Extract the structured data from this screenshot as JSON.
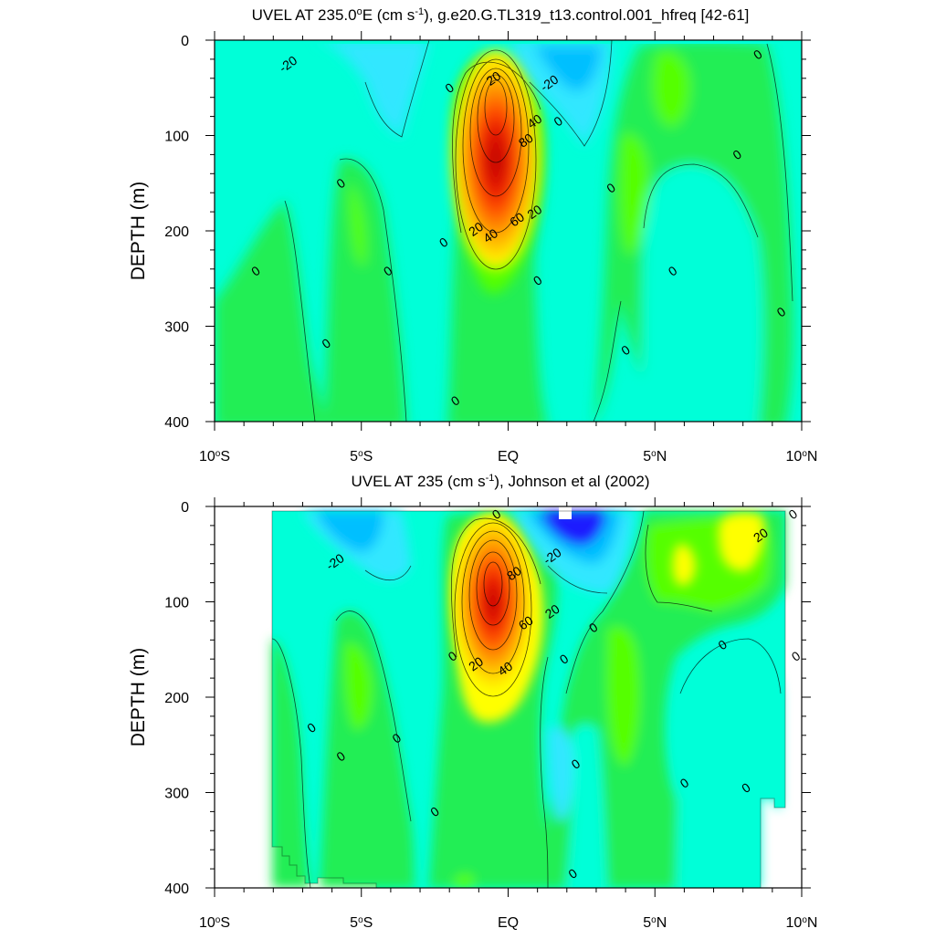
{
  "chart_data": [
    {
      "type": "heatmap",
      "title_main": "UVEL AT 235.0",
      "title_sup1": "o",
      "title_mid": "E (cm s",
      "title_sup2": "-1",
      "title_end": "), g.e20.G.TL319_t13.control.001_hfreq [42-61]",
      "ylabel": "DEPTH (m)",
      "xlim": [
        -10,
        10
      ],
      "ylim": [
        0,
        400
      ],
      "y_reversed": true,
      "x_ticks": [
        {
          "value": -10,
          "num": "10",
          "deg": "o",
          "hemi": "S"
        },
        {
          "value": -5,
          "num": "5",
          "deg": "o",
          "hemi": "S"
        },
        {
          "value": 0,
          "num": "EQ",
          "deg": "",
          "hemi": ""
        },
        {
          "value": 5,
          "num": "5",
          "deg": "o",
          "hemi": "N"
        },
        {
          "value": 10,
          "num": "10",
          "deg": "o",
          "hemi": "N"
        }
      ],
      "y_ticks": [
        0,
        100,
        200,
        300,
        400
      ],
      "colors": {
        "c_neg30": "#00bfff",
        "c_neg20": "#33e7ff",
        "c_neg10": "#00ffd8",
        "c_0": "#22ee55",
        "c_10": "#55ff00",
        "c_20": "#ffff00",
        "c_30": "#ffd700",
        "c_40": "#ffb000",
        "c_60": "#ff7000",
        "c_80": "#ff2a00",
        "c_max": "#cc0000"
      },
      "core": {
        "lat": -0.1,
        "depth": 110,
        "max": 85
      },
      "contour_labels": [
        {
          "text": "-20",
          "lat": -7.5,
          "depth": 25
        },
        {
          "text": "0",
          "lat": -2.0,
          "depth": 50
        },
        {
          "text": "20",
          "lat": -0.5,
          "depth": 40
        },
        {
          "text": "-20",
          "lat": 1.4,
          "depth": 45
        },
        {
          "text": "40",
          "lat": 0.9,
          "depth": 85
        },
        {
          "text": "80",
          "lat": 0.6,
          "depth": 105
        },
        {
          "text": "0",
          "lat": 1.7,
          "depth": 85
        },
        {
          "text": "0",
          "lat": 8.5,
          "depth": 15
        },
        {
          "text": "0",
          "lat": 7.8,
          "depth": 120
        },
        {
          "text": "0",
          "lat": -5.7,
          "depth": 150
        },
        {
          "text": "0",
          "lat": 3.5,
          "depth": 155
        },
        {
          "text": "20",
          "lat": 0.9,
          "depth": 180
        },
        {
          "text": "60",
          "lat": 0.3,
          "depth": 188
        },
        {
          "text": "20",
          "lat": -1.1,
          "depth": 198
        },
        {
          "text": "40",
          "lat": -0.6,
          "depth": 205
        },
        {
          "text": "0",
          "lat": -2.2,
          "depth": 212
        },
        {
          "text": "0",
          "lat": -8.6,
          "depth": 242
        },
        {
          "text": "0",
          "lat": -4.1,
          "depth": 242
        },
        {
          "text": "0",
          "lat": 5.6,
          "depth": 242
        },
        {
          "text": "0",
          "lat": 1.0,
          "depth": 252
        },
        {
          "text": "0",
          "lat": 9.3,
          "depth": 285
        },
        {
          "text": "0",
          "lat": -6.2,
          "depth": 318
        },
        {
          "text": "0",
          "lat": 4.0,
          "depth": 325
        },
        {
          "text": "0",
          "lat": -1.8,
          "depth": 378
        }
      ]
    },
    {
      "type": "heatmap",
      "title_main": "UVEL AT 235 (cm s",
      "title_sup1": "-1",
      "title_mid": "), Johnson et al (2002)",
      "title_sup2": "",
      "title_end": "",
      "ylabel": "DEPTH (m)",
      "xlim": [
        -10,
        10
      ],
      "ylim": [
        0,
        400
      ],
      "y_reversed": true,
      "x_ticks": [
        {
          "value": -10,
          "num": "10",
          "deg": "o",
          "hemi": "S"
        },
        {
          "value": -5,
          "num": "5",
          "deg": "o",
          "hemi": "S"
        },
        {
          "value": 0,
          "num": "EQ",
          "deg": "",
          "hemi": ""
        },
        {
          "value": 5,
          "num": "5",
          "deg": "o",
          "hemi": "N"
        },
        {
          "value": 10,
          "num": "10",
          "deg": "o",
          "hemi": "N"
        }
      ],
      "y_ticks": [
        0,
        100,
        200,
        300,
        400
      ],
      "colors": {
        "c_neg40": "#1a1aff",
        "c_neg30": "#00bfff",
        "c_neg20": "#33e7ff",
        "c_neg10": "#00ffd8",
        "c_0": "#22ee55",
        "c_10": "#55ff00",
        "c_20": "#ffff00",
        "c_40": "#ffb000",
        "c_80": "#ff2a00",
        "c_max": "#cc0000"
      },
      "core": {
        "lat": -0.2,
        "depth": 85,
        "max": 88
      },
      "data_extent_lat": [
        -8.0,
        9.8
      ],
      "contour_labels": [
        {
          "text": "0",
          "lat": -0.4,
          "depth": 8
        },
        {
          "text": "0",
          "lat": 9.7,
          "depth": 8
        },
        {
          "text": "20",
          "lat": 8.6,
          "depth": 30
        },
        {
          "text": "-20",
          "lat": -5.9,
          "depth": 58
        },
        {
          "text": "-20",
          "lat": 1.5,
          "depth": 52
        },
        {
          "text": "80",
          "lat": 0.2,
          "depth": 70
        },
        {
          "text": "20",
          "lat": 1.5,
          "depth": 110
        },
        {
          "text": "60",
          "lat": 0.6,
          "depth": 122
        },
        {
          "text": "0",
          "lat": 2.9,
          "depth": 127
        },
        {
          "text": "0",
          "lat": 7.3,
          "depth": 145
        },
        {
          "text": "0",
          "lat": -1.9,
          "depth": 157
        },
        {
          "text": "0",
          "lat": 1.9,
          "depth": 160
        },
        {
          "text": "0",
          "lat": 9.8,
          "depth": 157
        },
        {
          "text": "20",
          "lat": -1.1,
          "depth": 165
        },
        {
          "text": "40",
          "lat": -0.1,
          "depth": 170
        },
        {
          "text": "0",
          "lat": -6.7,
          "depth": 232
        },
        {
          "text": "0",
          "lat": -3.8,
          "depth": 243
        },
        {
          "text": "0",
          "lat": -5.7,
          "depth": 262
        },
        {
          "text": "0",
          "lat": 2.3,
          "depth": 270
        },
        {
          "text": "0",
          "lat": 6.0,
          "depth": 290
        },
        {
          "text": "0",
          "lat": 8.1,
          "depth": 295
        },
        {
          "text": "0",
          "lat": -2.5,
          "depth": 320
        },
        {
          "text": "0",
          "lat": 2.2,
          "depth": 385
        }
      ]
    }
  ]
}
